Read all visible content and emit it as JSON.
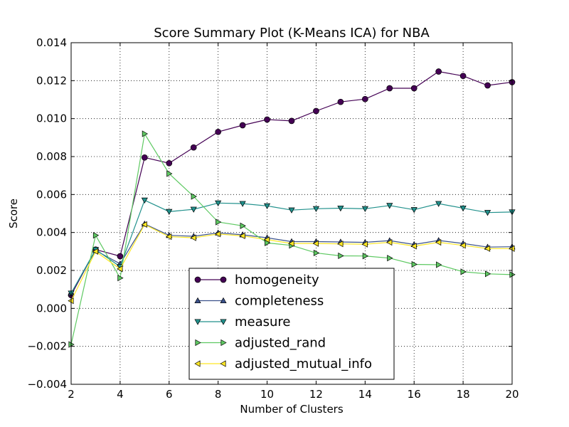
{
  "chart_data": {
    "type": "line",
    "title": "Score Summary Plot (K-Means ICA) for NBA",
    "xlabel": "Number of Clusters",
    "ylabel": "Score",
    "xlim": [
      2,
      20
    ],
    "ylim": [
      -0.004,
      0.014
    ],
    "xticks": [
      2,
      4,
      6,
      8,
      10,
      12,
      14,
      16,
      18,
      20
    ],
    "xtick_labels": [
      "2",
      "4",
      "6",
      "8",
      "10",
      "12",
      "14",
      "16",
      "18",
      "20"
    ],
    "yticks": [
      -0.004,
      -0.002,
      0.0,
      0.002,
      0.004,
      0.006,
      0.008,
      0.01,
      0.012,
      0.014
    ],
    "ytick_labels": [
      "−0.004",
      "−0.002",
      "0.000",
      "0.002",
      "0.004",
      "0.006",
      "0.008",
      "0.010",
      "0.012",
      "0.014"
    ],
    "grid": true,
    "legend_position": "lower-center",
    "x": [
      2,
      3,
      4,
      5,
      6,
      7,
      8,
      9,
      10,
      11,
      12,
      13,
      14,
      15,
      16,
      17,
      18,
      19,
      20
    ],
    "series": [
      {
        "name": "homogeneity",
        "color": "#440154",
        "marker": "circle",
        "values": [
          0.0007,
          0.0031,
          0.00275,
          0.00795,
          0.00765,
          0.00848,
          0.0093,
          0.00965,
          0.00995,
          0.00988,
          0.0104,
          0.01088,
          0.01103,
          0.0116,
          0.0116,
          0.01248,
          0.01225,
          0.01175,
          0.01192
        ]
      },
      {
        "name": "completeness",
        "color": "#3b528b",
        "marker": "triangle-up",
        "values": [
          0.0008,
          0.00305,
          0.00235,
          0.00445,
          0.00385,
          0.0038,
          0.00398,
          0.00388,
          0.00372,
          0.00352,
          0.00352,
          0.0035,
          0.00348,
          0.00357,
          0.00337,
          0.00358,
          0.00342,
          0.00323,
          0.00325
        ]
      },
      {
        "name": "measure",
        "color": "#21918c",
        "marker": "triangle-down",
        "values": [
          0.0008,
          0.0031,
          0.0022,
          0.0057,
          0.0051,
          0.00522,
          0.00555,
          0.00552,
          0.0054,
          0.00518,
          0.00525,
          0.00528,
          0.00525,
          0.00542,
          0.0052,
          0.00552,
          0.00528,
          0.00505,
          0.00508
        ]
      },
      {
        "name": "adjusted_rand",
        "color": "#5ec962",
        "marker": "triangle-right",
        "values": [
          -0.0019,
          0.00385,
          0.0016,
          0.0092,
          0.0071,
          0.0059,
          0.00455,
          0.00435,
          0.00345,
          0.00332,
          0.00292,
          0.00277,
          0.00276,
          0.00265,
          0.00232,
          0.0023,
          0.00193,
          0.00182,
          0.00178
        ]
      },
      {
        "name": "adjusted_mutual_info",
        "color": "#fde725",
        "marker": "triangle-left",
        "values": [
          0.0004,
          0.003,
          0.00208,
          0.00442,
          0.00378,
          0.00372,
          0.00392,
          0.00382,
          0.00362,
          0.00342,
          0.00342,
          0.0034,
          0.00338,
          0.00348,
          0.00328,
          0.00348,
          0.00332,
          0.00315,
          0.00315
        ]
      }
    ]
  }
}
